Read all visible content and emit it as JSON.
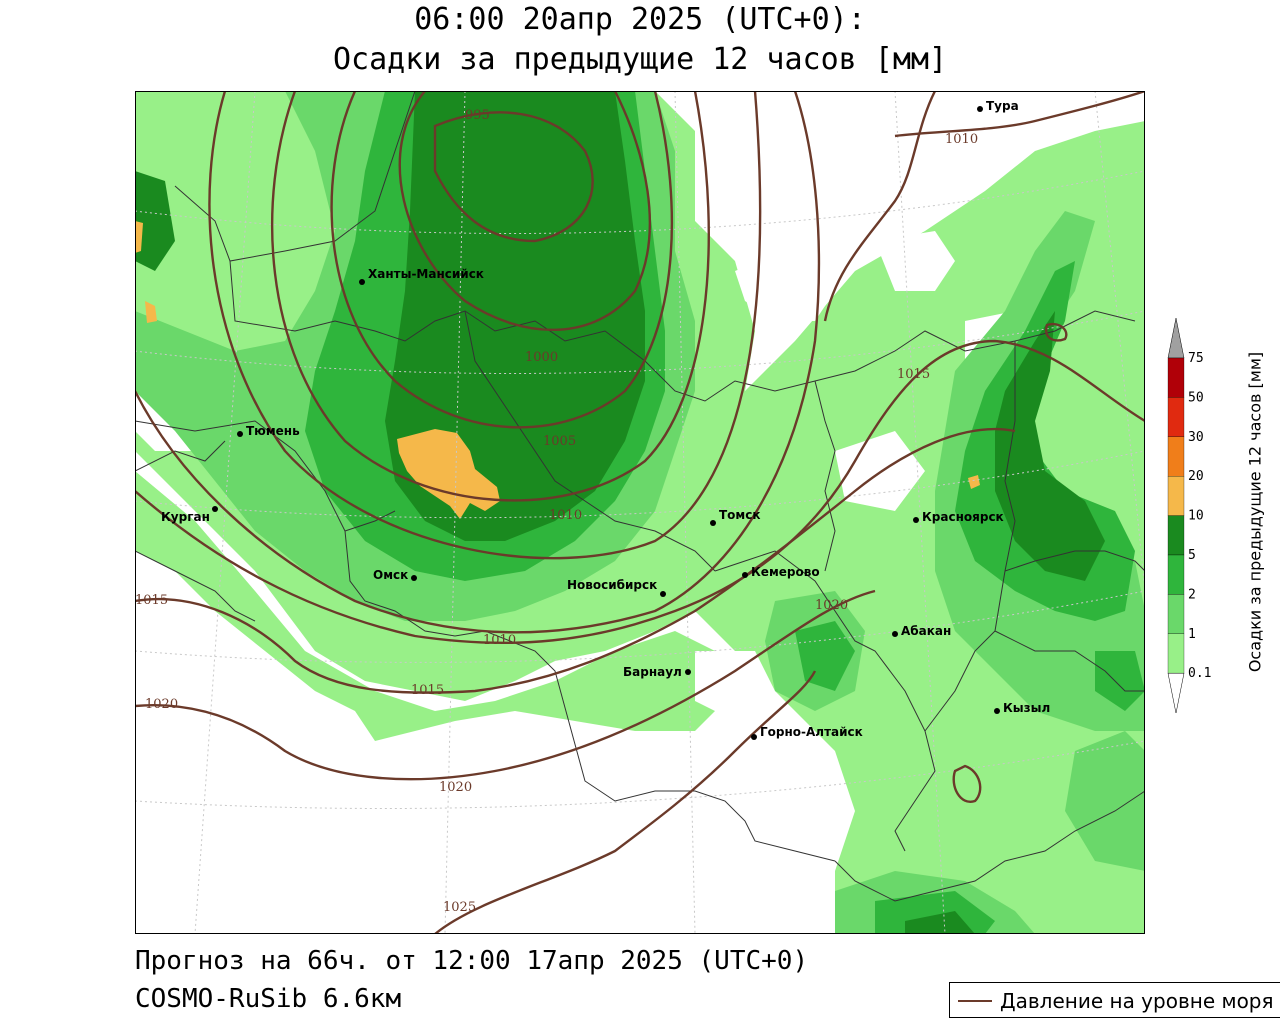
{
  "header": {
    "title_line1": "06:00 20апр 2025 (UTC+0):",
    "title_line2": "Осадки за предыдущие 12 часов [мм]"
  },
  "footer": {
    "forecast": "Прогноз на 66ч. от 12:00 17апр 2025 (UTC+0)",
    "model": "COSMO-RuSib 6.6км"
  },
  "legend": {
    "pressure_label": "Давление на уровне моря",
    "pressure_color": "#6b3a2a"
  },
  "colorbar": {
    "title": "Осадки за предыдущие 12 часов [мм]",
    "ticks": [
      "0.1",
      "1",
      "2",
      "5",
      "10",
      "20",
      "30",
      "50",
      "75"
    ],
    "colors": [
      "#98f088",
      "#6ad86a",
      "#2fb53c",
      "#1a8a1f",
      "#f5b84a",
      "#f07e1a",
      "#e02a10",
      "#b00008",
      "#a0a0a0"
    ]
  },
  "cities": [
    {
      "name": "Тура"
    },
    {
      "name": "Ханты-Мансийск"
    },
    {
      "name": "Тюмень"
    },
    {
      "name": "Курган"
    },
    {
      "name": "Омск"
    },
    {
      "name": "Новосибирск"
    },
    {
      "name": "Томск"
    },
    {
      "name": "Кемерово"
    },
    {
      "name": "Красноярск"
    },
    {
      "name": "Барнаул"
    },
    {
      "name": "Абакан"
    },
    {
      "name": "Горно-Алтайск"
    },
    {
      "name": "Кызыл"
    }
  ],
  "isobar_labels": [
    "1010",
    "1015",
    "1020",
    "1025",
    "995",
    "1000",
    "1005",
    "1010",
    "1015",
    "1015",
    "1020",
    "1020",
    "1010",
    "1020"
  ]
}
